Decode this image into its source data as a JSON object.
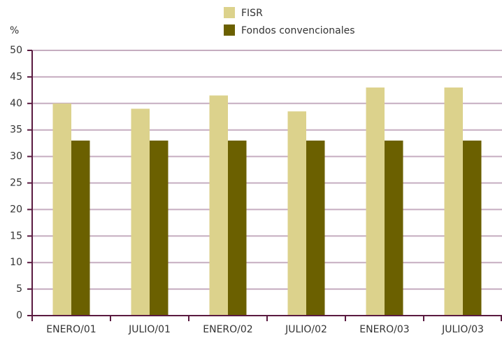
{
  "chart_data": {
    "type": "bar",
    "y_label": "%",
    "categories": [
      "ENERO/01",
      "JULIO/01",
      "ENERO/02",
      "JULIO/02",
      "ENERO/03",
      "JULIO/03"
    ],
    "series": [
      {
        "name": "FISR",
        "color": "#dcd28c",
        "values": [
          40,
          39,
          41.5,
          38.5,
          43,
          43
        ]
      },
      {
        "name": "Fondos convencionales",
        "color": "#6b6000",
        "values": [
          33,
          33,
          33,
          33,
          33,
          33
        ]
      }
    ],
    "ylim": [
      0,
      50
    ],
    "yticks": [
      0,
      5,
      10,
      15,
      20,
      25,
      30,
      35,
      40,
      45,
      50
    ],
    "grid": true
  }
}
